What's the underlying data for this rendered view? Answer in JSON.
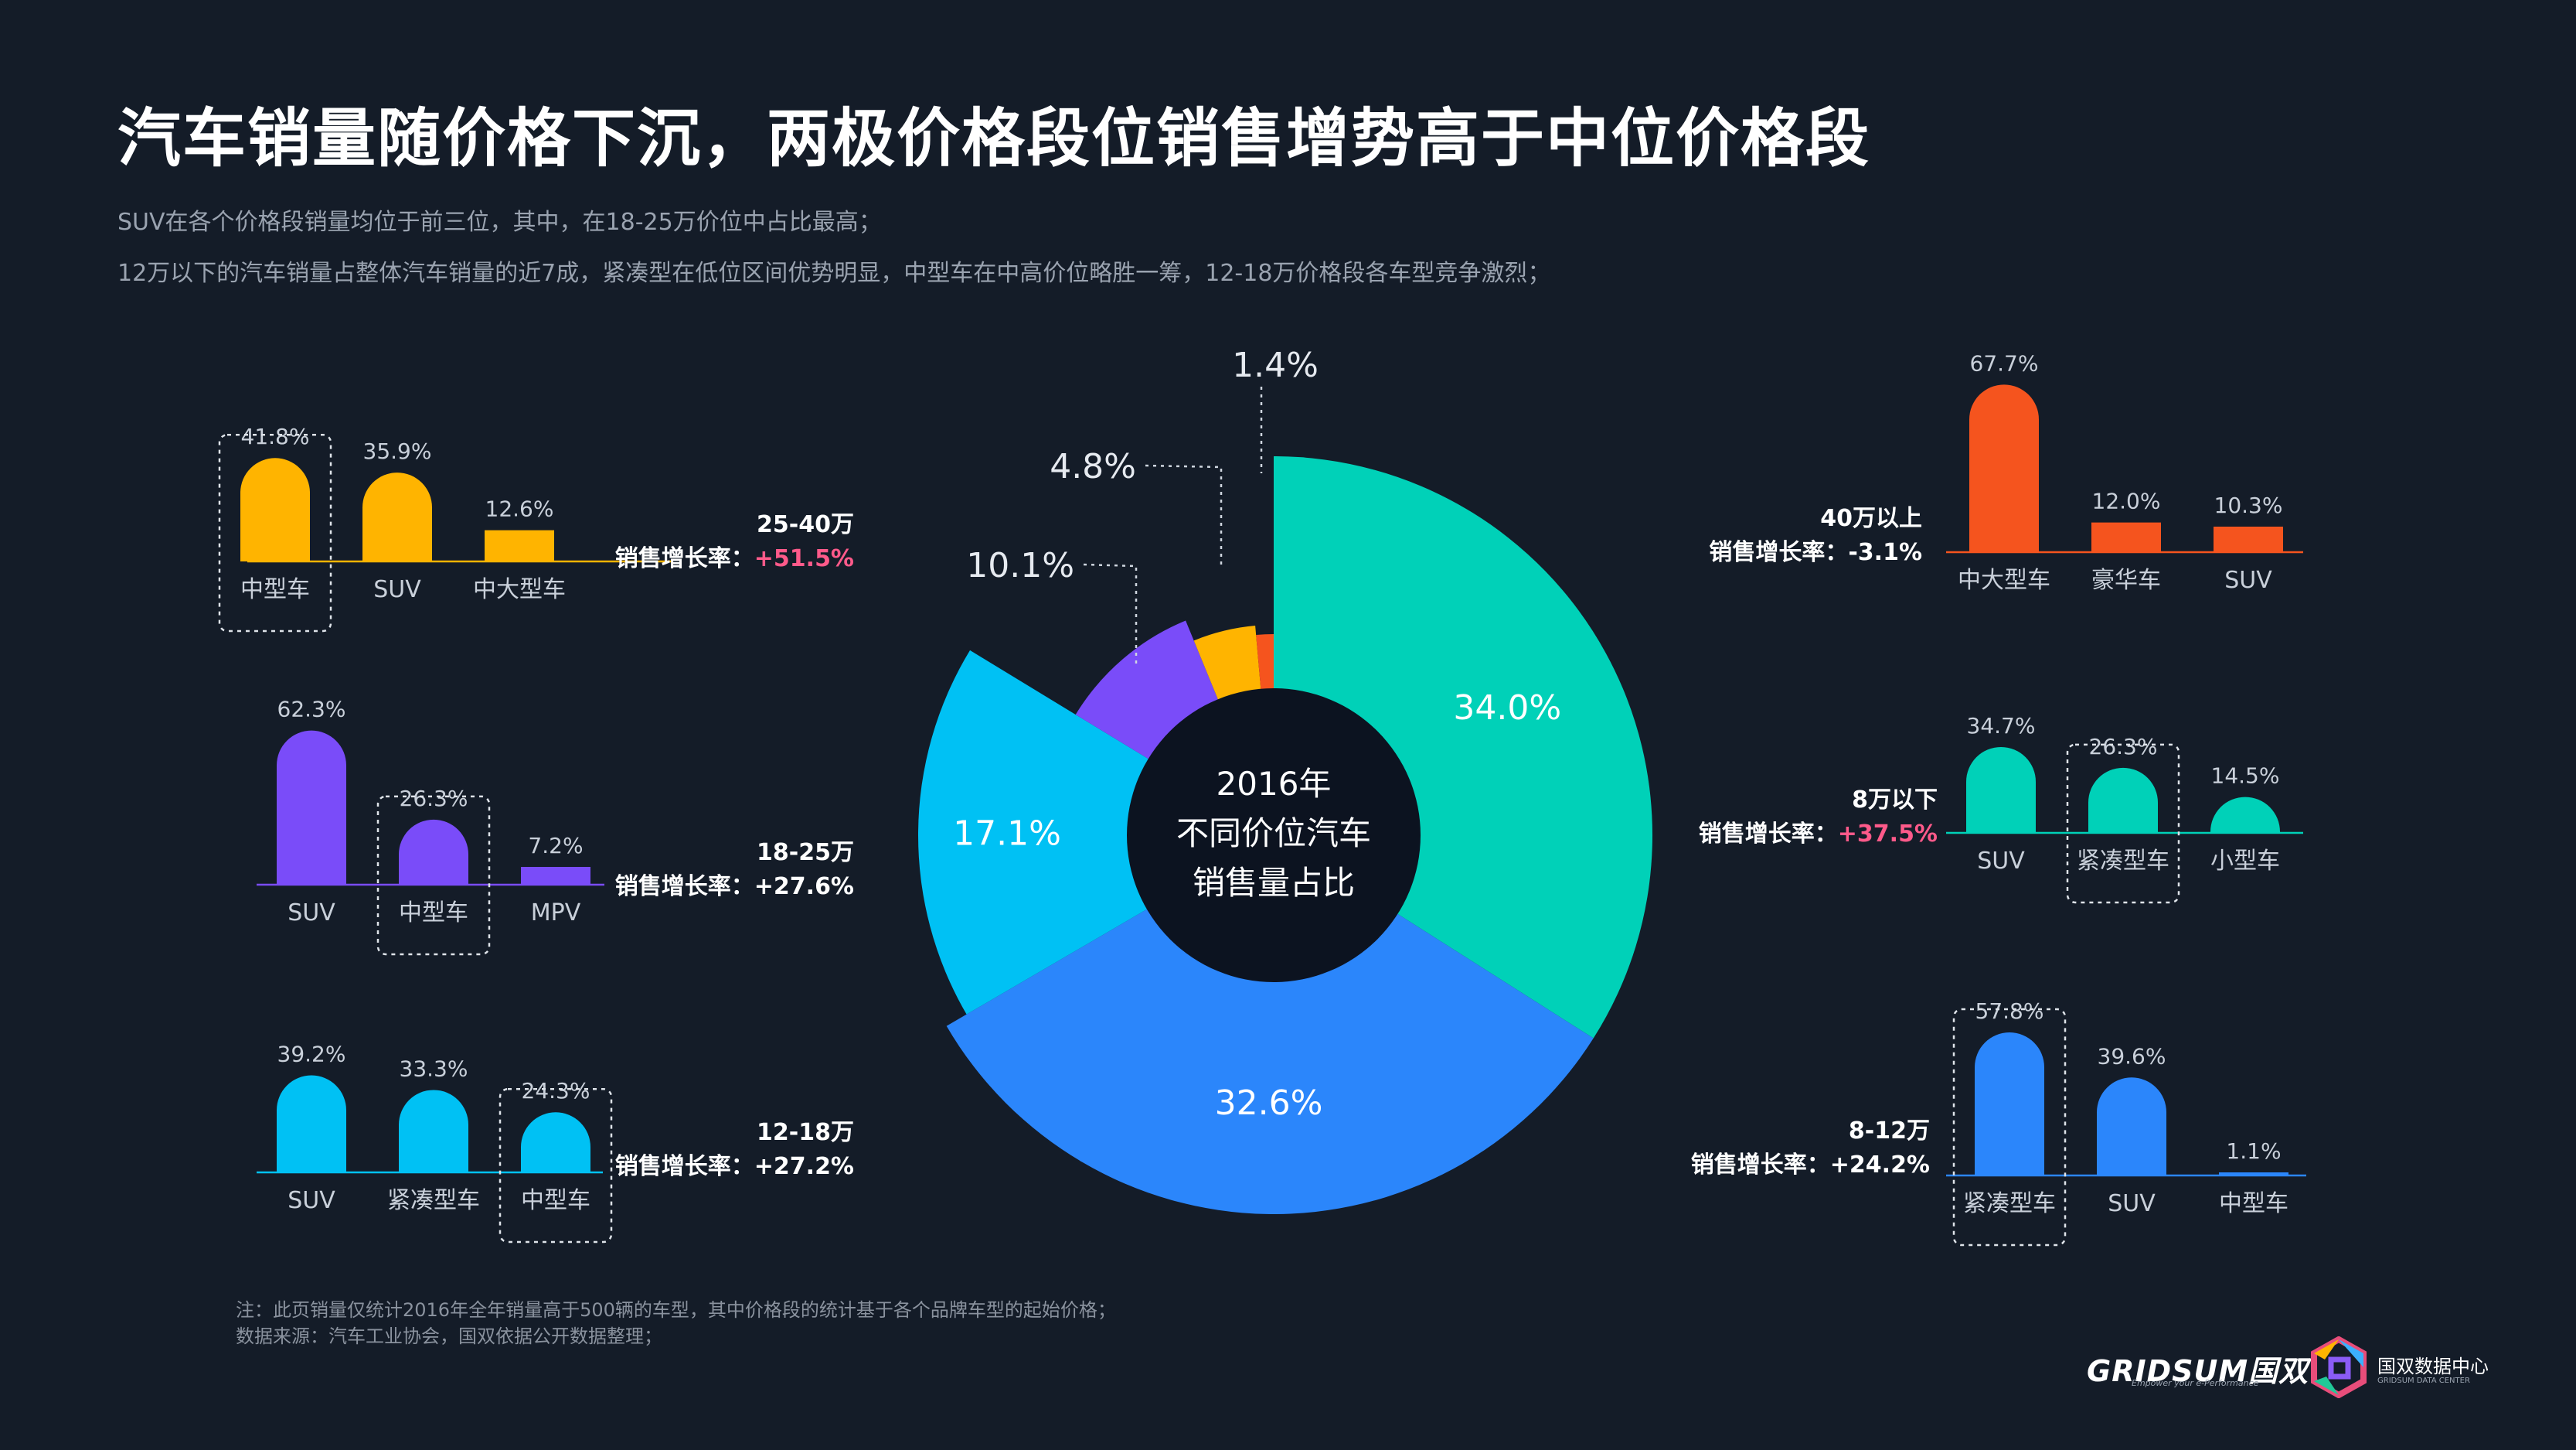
{
  "title": "汽车销量随价格下沉，两极价格段位销售增势高于中位价格段",
  "subtitles": [
    "SUV在各个价格段销量均位于前三位，其中，在18-25万价位中占比最高；",
    "12万以下的汽车销量占整体汽车销量的近7成，紧凑型在低位区间优势明显，中型车在中高价位略胜一筹，12-18万价格段各车型竞争激烈；"
  ],
  "notes": [
    "注：此页销量仅统计2016年全年销量高于500辆的车型，其中价格段的统计基于各个品牌车型的起始价格；",
    "数据来源：汽车工业协会，国双依据公开数据整理；"
  ],
  "growth_label": "销售增长率：",
  "chart_data": [
    {
      "type": "pie",
      "title": "2016年不同价位汽车销售量占比",
      "title_lines": [
        "2016年",
        "不同价位汽车",
        "销售量占比"
      ],
      "slices": [
        {
          "name": "8万以下",
          "value": 34.0,
          "label": "34.0%",
          "color": "#00d1b8"
        },
        {
          "name": "8-12万",
          "value": 32.6,
          "label": "32.6%",
          "color": "#2b86fb"
        },
        {
          "name": "12-18万",
          "value": 17.1,
          "label": "17.1%",
          "color": "#00c1f4"
        },
        {
          "name": "18-25万",
          "value": 10.1,
          "label": "10.1%",
          "color": "#7a4cf9"
        },
        {
          "name": "25-40万",
          "value": 4.8,
          "label": "4.8%",
          "color": "#ffb400"
        },
        {
          "name": "40万以上",
          "value": 1.4,
          "label": "1.4%",
          "color": "#f5541e"
        }
      ]
    },
    {
      "type": "bar",
      "segment": "25-40万",
      "growth": "+51.5%",
      "growth_color": "#ff5a8a",
      "color": "#ffb400",
      "highlight": 0,
      "categories": [
        "中型车",
        "SUV",
        "中大型车"
      ],
      "values": [
        41.8,
        35.9,
        12.6
      ],
      "labels": [
        "41.8%",
        "35.9%",
        "12.6%"
      ]
    },
    {
      "type": "bar",
      "segment": "18-25万",
      "growth": "+27.6%",
      "growth_color": "#ffffff",
      "color": "#7a4cf9",
      "highlight": 1,
      "categories": [
        "SUV",
        "中型车",
        "MPV"
      ],
      "values": [
        62.3,
        26.3,
        7.2
      ],
      "labels": [
        "62.3%",
        "26.3%",
        "7.2%"
      ]
    },
    {
      "type": "bar",
      "segment": "12-18万",
      "growth": "+27.2%",
      "growth_color": "#ffffff",
      "color": "#00c1f4",
      "highlight": 2,
      "categories": [
        "SUV",
        "紧凑型车",
        "中型车"
      ],
      "values": [
        39.2,
        33.3,
        24.3
      ],
      "labels": [
        "39.2%",
        "33.3%",
        "24.3%"
      ]
    },
    {
      "type": "bar",
      "segment": "40万以上",
      "growth": "-3.1%",
      "growth_color": "#ffffff",
      "color": "#f5541e",
      "highlight": -1,
      "categories": [
        "中大型车",
        "豪华车",
        "SUV"
      ],
      "values": [
        67.7,
        12.0,
        10.3
      ],
      "labels": [
        "67.7%",
        "12.0%",
        "10.3%"
      ]
    },
    {
      "type": "bar",
      "segment": "8万以下",
      "growth": "+37.5%",
      "growth_color": "#ff5a8a",
      "color": "#00d1b8",
      "highlight": 1,
      "categories": [
        "SUV",
        "紧凑型车",
        "小型车"
      ],
      "values": [
        34.7,
        26.3,
        14.5
      ],
      "labels": [
        "34.7%",
        "26.3%",
        "14.5%"
      ]
    },
    {
      "type": "bar",
      "segment": "8-12万",
      "growth": "+24.2%",
      "growth_color": "#ffffff",
      "color": "#2b86fb",
      "highlight": 0,
      "categories": [
        "紧凑型车",
        "SUV",
        "中型车"
      ],
      "values": [
        57.8,
        39.6,
        1.1
      ],
      "labels": [
        "57.8%",
        "39.6%",
        "1.1%"
      ]
    }
  ],
  "logos": {
    "gridsum": "GRIDSUM国双",
    "gridsum_tag": "Empower your e-Performance",
    "center": "国双数据中心",
    "center_sub": "GRIDSUM DATA CENTER"
  }
}
